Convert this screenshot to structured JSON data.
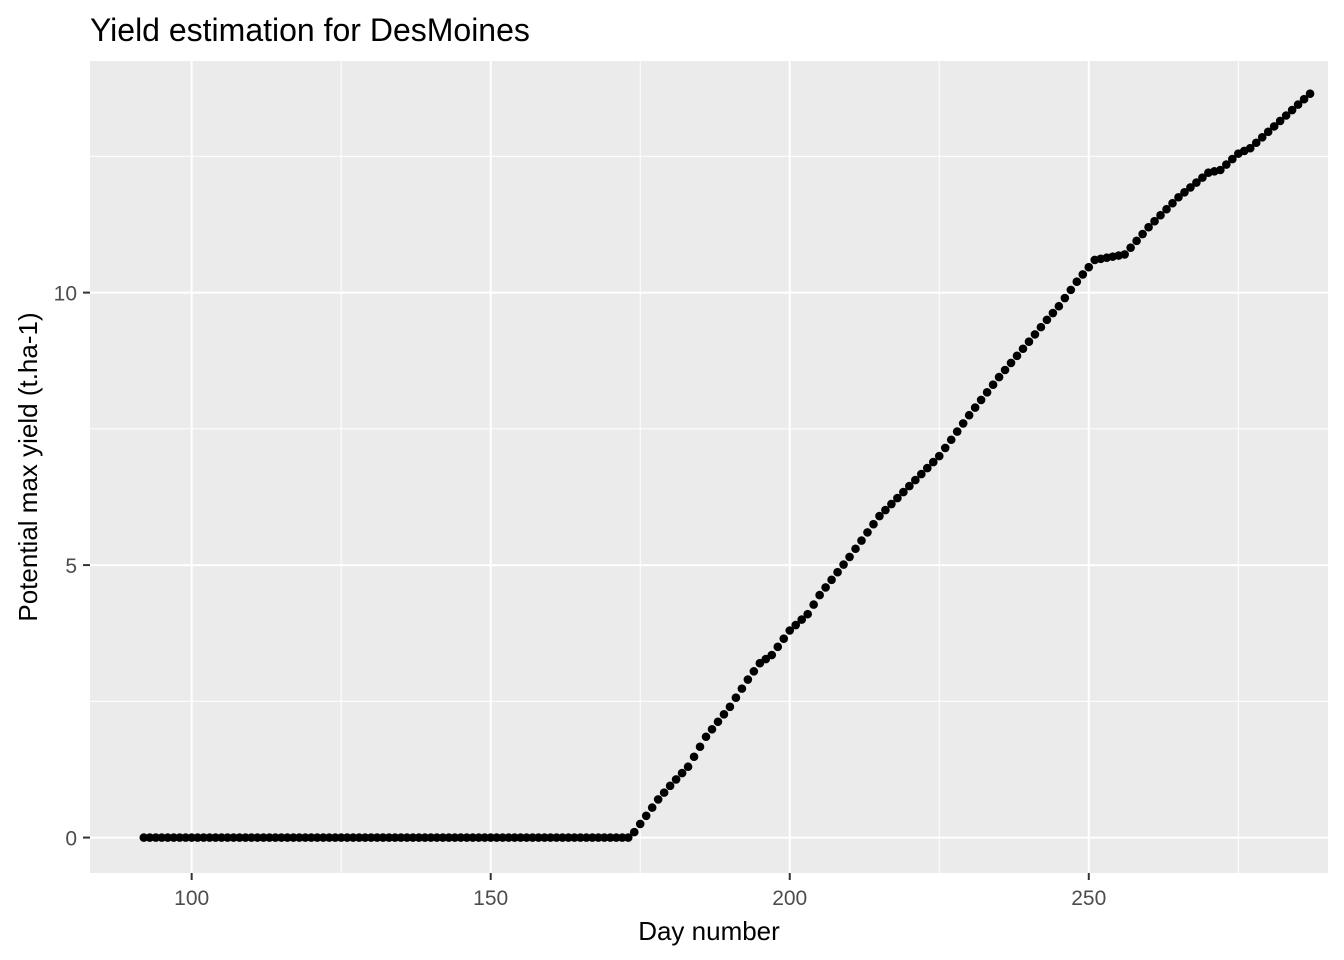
{
  "chart_data": {
    "type": "scatter",
    "title": "Yield estimation for DesMoines",
    "xlabel": "Day number",
    "ylabel": "Potential max yield (t.ha-1)",
    "xlim": [
      83,
      290
    ],
    "ylim": [
      -0.65,
      14.25
    ],
    "x_ticks": [
      100,
      150,
      200,
      250
    ],
    "x_tick_labels": [
      "100",
      "150",
      "200",
      "250"
    ],
    "x_minor_ticks": [
      125,
      175,
      225,
      275
    ],
    "y_ticks": [
      0,
      5,
      10
    ],
    "y_tick_labels": [
      "0",
      "5",
      "10"
    ],
    "y_minor_ticks": [
      2.5,
      7.5,
      12.5
    ],
    "grid": true,
    "point_color": "#000000",
    "panel_color": "#ebebeb",
    "grid_color": "#ffffff",
    "series": [
      {
        "day_start": 92,
        "day_end": 287,
        "anchors": [
          [
            92,
            0
          ],
          [
            173,
            0
          ],
          [
            174,
            0.1
          ],
          [
            176,
            0.4
          ],
          [
            178,
            0.7
          ],
          [
            180,
            0.95
          ],
          [
            183,
            1.3
          ],
          [
            186,
            1.85
          ],
          [
            190,
            2.4
          ],
          [
            193,
            2.9
          ],
          [
            195,
            3.2
          ],
          [
            197,
            3.35
          ],
          [
            200,
            3.8
          ],
          [
            203,
            4.1
          ],
          [
            205,
            4.45
          ],
          [
            210,
            5.15
          ],
          [
            215,
            5.9
          ],
          [
            220,
            6.45
          ],
          [
            225,
            7.0
          ],
          [
            230,
            7.75
          ],
          [
            235,
            8.45
          ],
          [
            240,
            9.1
          ],
          [
            243,
            9.5
          ],
          [
            245,
            9.75
          ],
          [
            248,
            10.2
          ],
          [
            251,
            10.6
          ],
          [
            256,
            10.7
          ],
          [
            260,
            11.2
          ],
          [
            265,
            11.75
          ],
          [
            270,
            12.2
          ],
          [
            272,
            12.25
          ],
          [
            275,
            12.55
          ],
          [
            277,
            12.65
          ],
          [
            280,
            12.95
          ],
          [
            287,
            13.65
          ]
        ]
      }
    ]
  }
}
